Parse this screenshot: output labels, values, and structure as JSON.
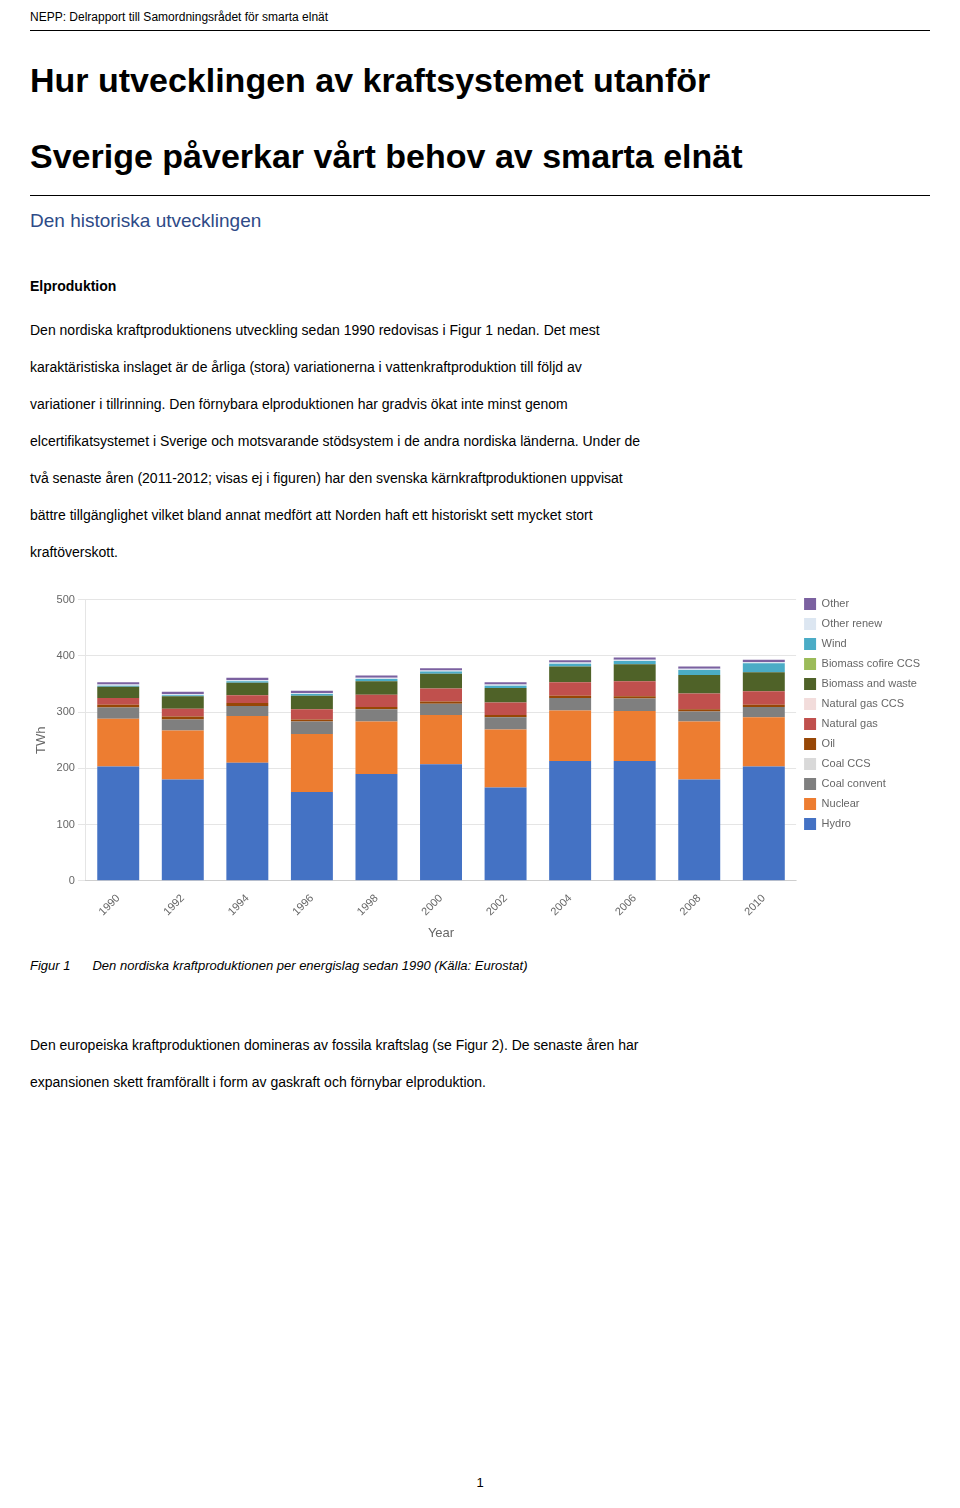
{
  "header": "NEPP: Delrapport till Samordningsrådet för smarta elnät",
  "title": [
    "Hur utvecklingen av kraftsystemet utanför",
    "Sverige påverkar vårt behov av smarta elnät"
  ],
  "section_title": "Den historiska utvecklingen",
  "subtitle": "Elproduktion",
  "body": [
    "Den nordiska kraftproduktionens utveckling sedan 1990 redovisas i Figur 1 nedan. Det mest",
    "karaktäristiska inslaget är de årliga (stora) variationerna i vattenkraftproduktion till följd av",
    "variationer i tillrinning. Den förnybara elproduktionen har gradvis ökat inte minst genom",
    "elcertifikatsystemet i Sverige och motsvarande stödsystem i de andra nordiska länderna. Under de",
    "två senaste åren (2011-2012; visas ej i figuren) har den svenska kärnkraftproduktionen uppvisat",
    "bättre tillgänglighet vilket bland annat medfört att Norden haft ett historiskt sett mycket stort",
    "kraftöverskott."
  ],
  "caption": [
    "Figur 1",
    "Den nordiska kraftproduktionen per energislag sedan 1990 (Källa: Eurostat)"
  ],
  "body2": [
    "Den europeiska kraftproduktionen domineras av fossila kraftslag (se Figur 2). De senaste åren har",
    "expansionen skett framförallt i form av gaskraft och förnybar elproduktion."
  ],
  "page_number": "1",
  "chart_data": {
    "type": "bar",
    "stacked": true,
    "x_label": "Year",
    "y_label": "TWh",
    "categories": [
      "1990",
      "1992",
      "1994",
      "1996",
      "1998",
      "2000",
      "2002",
      "2004",
      "2006",
      "2008",
      "2010"
    ],
    "series": [
      {
        "name": "Hydro",
        "color": "#4472C4",
        "values": [
          203,
          180,
          210,
          158,
          190,
          207,
          166,
          213,
          213,
          180,
          203
        ]
      },
      {
        "name": "Nuclear",
        "color": "#ED7D31",
        "values": [
          85,
          87,
          83,
          103,
          93,
          88,
          103,
          90,
          89,
          103,
          88
        ]
      },
      {
        "name": "Coal convent",
        "color": "#7F7F7F",
        "values": [
          20,
          20,
          18,
          22,
          22,
          20,
          22,
          22,
          22,
          18,
          18
        ]
      },
      {
        "name": "Coal CCS",
        "color": "#D9D9D9",
        "values": [
          0,
          0,
          0,
          0,
          0,
          0,
          0,
          0,
          0,
          0,
          0
        ]
      },
      {
        "name": "Oil",
        "color": "#974706",
        "values": [
          5,
          5,
          5,
          4,
          4,
          4,
          4,
          4,
          4,
          4,
          4
        ]
      },
      {
        "name": "Natural gas",
        "color": "#C0504D",
        "values": [
          12,
          14,
          14,
          18,
          22,
          23,
          22,
          24,
          27,
          28,
          24
        ]
      },
      {
        "name": "Natural gas CCS",
        "color": "#F2DCDB",
        "values": [
          0,
          0,
          0,
          0,
          0,
          0,
          0,
          0,
          0,
          0,
          0
        ]
      },
      {
        "name": "Biomass and waste",
        "color": "#4F6228",
        "values": [
          20,
          22,
          22,
          24,
          24,
          26,
          26,
          28,
          30,
          33,
          34
        ]
      },
      {
        "name": "Biomass cofire CCS",
        "color": "#9BBB59",
        "values": [
          0,
          0,
          0,
          0,
          0,
          0,
          0,
          0,
          0,
          0,
          0
        ]
      },
      {
        "name": "Wind",
        "color": "#4BACC6",
        "values": [
          2,
          2,
          3,
          3,
          4,
          4,
          4,
          5,
          6,
          9,
          16
        ]
      },
      {
        "name": "Other renew",
        "color": "#DCE6F1",
        "values": [
          2,
          2,
          2,
          2,
          2,
          2,
          2,
          2,
          2,
          2,
          2
        ]
      },
      {
        "name": "Other",
        "color": "#7B61A0",
        "values": [
          4,
          4,
          4,
          4,
          4,
          4,
          4,
          4,
          4,
          4,
          4
        ]
      }
    ],
    "ylim": [
      0,
      500
    ],
    "yticks": [
      0,
      100,
      200,
      300,
      400,
      500
    ],
    "grid": true,
    "legend": "right"
  }
}
